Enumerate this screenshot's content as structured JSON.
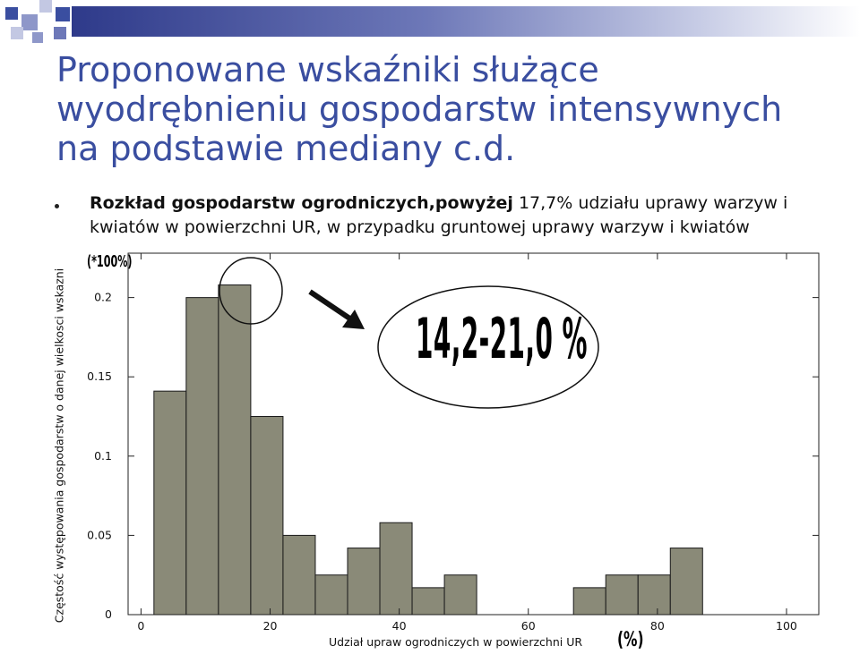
{
  "slide": {
    "title": "Proponowane wskaźniki służące wyodrębnieniu gospodarstw intensywnych na podstawie mediany c.d.",
    "bullet_bold": "Rozkład gospodarstw ogrodniczych,powyżej",
    "bullet_rest": " 17,7% udziału uprawy warzyw i kwiatów w powierzchni UR, w przypadku gruntowej uprawy warzyw i kwiatów",
    "accent_color": "#3a4ea0"
  },
  "annotations": {
    "unit_top": "(*100%)",
    "unit_x": "(%)",
    "highlight_range": "14,2-21,0 %",
    "arrow_icon": "arrow-icon",
    "circle_icon": "circle-highlight-icon"
  },
  "chart_data": {
    "type": "bar",
    "x_bin_edges": [
      0,
      5,
      10,
      15,
      20,
      25,
      30,
      35,
      40,
      45,
      50,
      55,
      60,
      65,
      70,
      75,
      80,
      85,
      90,
      95,
      100,
      105
    ],
    "values": [
      0.141,
      0.2,
      0.208,
      0.125,
      0.05,
      0.025,
      0.042,
      0.058,
      0.017,
      0.025,
      0,
      0,
      0,
      0.017,
      0.025,
      0.025,
      0.042
    ],
    "first_bar_start": 2,
    "bin_width": 5,
    "xlabel": "Udział upraw ogrodniczych w powierzchni UR",
    "ylabel": "Częstość występowania gospodarstw o danej wielkosci wskazni",
    "xticks": [
      0,
      20,
      40,
      60,
      80,
      100
    ],
    "xtick_labels": [
      "0",
      "20",
      "40",
      "60",
      "80",
      "100"
    ],
    "yticks": [
      0,
      0.05,
      0.1,
      0.15,
      0.2
    ],
    "ytick_labels": [
      "0",
      "0.05",
      "0.1",
      "0.15",
      "0.2"
    ],
    "xlim": [
      -2,
      105
    ],
    "ylim": [
      0,
      0.228
    ],
    "bar_color": "#8a8a78",
    "grid": false
  }
}
